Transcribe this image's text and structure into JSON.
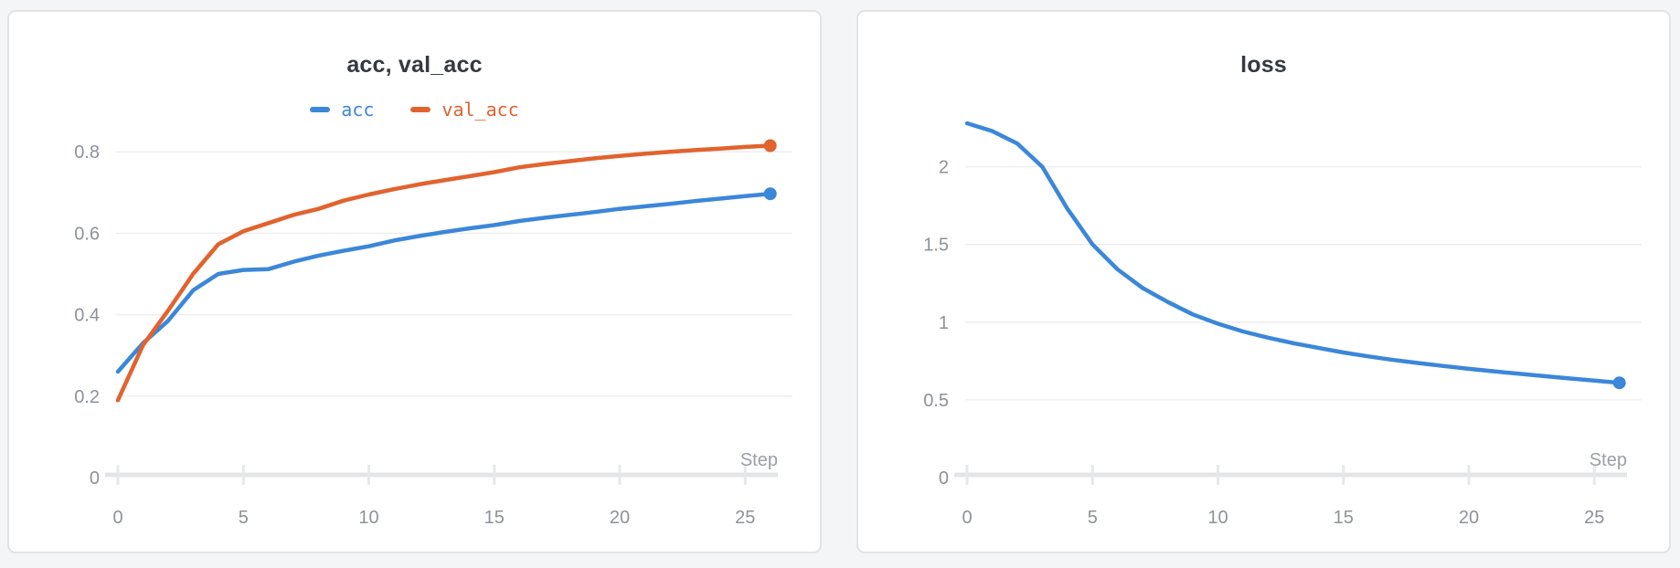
{
  "page": {
    "background": "#f4f5f6",
    "card_background": "#ffffff",
    "card_border": "#e2e3e5"
  },
  "chart_data": [
    {
      "type": "line",
      "title": "acc, val_acc",
      "xlabel": "Step",
      "show_legend": true,
      "grid": true,
      "legend_position": "top",
      "xlim": [
        0,
        26
      ],
      "ylim": [
        0,
        0.87
      ],
      "x_ticks": [
        0,
        5,
        10,
        15,
        20,
        25
      ],
      "y_ticks": [
        0,
        0.2,
        0.4,
        0.6,
        0.8
      ],
      "x": [
        0,
        1,
        2,
        3,
        4,
        5,
        6,
        7,
        8,
        9,
        10,
        11,
        12,
        13,
        14,
        15,
        16,
        17,
        18,
        19,
        20,
        21,
        22,
        23,
        24,
        25,
        26
      ],
      "series": [
        {
          "name": "acc",
          "color": "#3b87d9",
          "values": [
            0.26,
            0.33,
            0.385,
            0.46,
            0.5,
            0.51,
            0.512,
            0.53,
            0.545,
            0.557,
            0.568,
            0.582,
            0.593,
            0.603,
            0.612,
            0.62,
            0.63,
            0.638,
            0.645,
            0.652,
            0.66,
            0.666,
            0.672,
            0.679,
            0.685,
            0.691,
            0.697
          ]
        },
        {
          "name": "val_acc",
          "color": "#e1632e",
          "values": [
            0.19,
            0.325,
            0.41,
            0.5,
            0.573,
            0.605,
            0.625,
            0.645,
            0.66,
            0.68,
            0.695,
            0.708,
            0.72,
            0.73,
            0.74,
            0.75,
            0.762,
            0.77,
            0.777,
            0.784,
            0.79,
            0.795,
            0.8,
            0.804,
            0.808,
            0.812,
            0.815
          ]
        }
      ]
    },
    {
      "type": "line",
      "title": "loss",
      "xlabel": "Step",
      "show_legend": false,
      "grid": true,
      "xlim": [
        0,
        26
      ],
      "ylim": [
        0,
        2.28
      ],
      "x_ticks": [
        0,
        5,
        10,
        15,
        20,
        25
      ],
      "y_ticks": [
        0,
        0.5,
        1,
        1.5,
        2
      ],
      "x": [
        0,
        1,
        2,
        3,
        4,
        5,
        6,
        7,
        8,
        9,
        10,
        11,
        12,
        13,
        14,
        15,
        16,
        17,
        18,
        19,
        20,
        21,
        22,
        23,
        24,
        25,
        26
      ],
      "series": [
        {
          "name": "loss",
          "color": "#3b87d9",
          "values": [
            2.28,
            2.23,
            2.15,
            2.0,
            1.73,
            1.5,
            1.34,
            1.22,
            1.13,
            1.05,
            0.99,
            0.94,
            0.9,
            0.865,
            0.835,
            0.805,
            0.78,
            0.757,
            0.737,
            0.718,
            0.7,
            0.684,
            0.668,
            0.653,
            0.638,
            0.624,
            0.61
          ]
        }
      ]
    }
  ],
  "style": {
    "gridline_color": "#ededee",
    "axis_line_color": "#e4e5e6",
    "tick_mark_color": "#e7e8e9",
    "tick_label_color": "#8d929a",
    "axis_name_color": "#9ba0a8",
    "title_color": "#343a40"
  }
}
